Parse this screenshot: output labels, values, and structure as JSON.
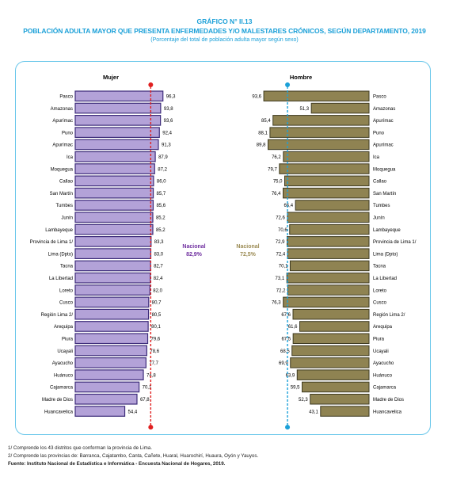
{
  "header": {
    "title": "GRÁFICO N° II.13",
    "subtitle": "POBLACIÓN ADULTA MAYOR QUE PRESENTA ENFERMEDADES Y/O MALESTARES CRÓNICOS, SEGÚN DEPARTAMENTO, 2019",
    "note": "(Porcentaje del total de población adulta mayor según sexo)"
  },
  "footnotes": {
    "n1": "1/ Comprende los 43 distritos que conforman la provincia de Lima.",
    "n2": "2/ Comprende las provincias de: Barranca, Cajatambo, Canta, Cañete, Huaral, Huarochirí, Huaura, Oyón y Yauyos.",
    "source": "Fuente: Instituto Nacional de Estadística e Informática - Encuesta Nacional de Hogares, 2019."
  },
  "colors": {
    "mujer_bar": "#b3a2d8",
    "mujer_border": "#3d2c7a",
    "hombre_bar": "#8f8352",
    "hombre_border": "#3e3a20",
    "mujer_line": "#e02020",
    "hombre_line": "#1ba0d8",
    "mujer_nacional": "#7030a0",
    "hombre_nacional": "#9c8c55",
    "title": "#1ba0d8"
  },
  "chart_data": [
    {
      "type": "bar",
      "orientation": "horizontal",
      "title": "Mujer",
      "categories": [
        "Pasco",
        "Amazonas",
        "Apurímac",
        "Puno",
        "Apurímac",
        "Ica",
        "Moquegua",
        "Callao",
        "San Martín",
        "Tumbes",
        "Junín",
        "Lambayeque",
        "Provincia de Lima 1/",
        "Lima (Dpto)",
        "Tacna",
        "La Libertad",
        "Loreto",
        "Cusco",
        "Región Lima 2/",
        "Arequipa",
        "Piura",
        "Ucayali",
        "Ayacucho",
        "Huánuco",
        "Cajamarca",
        "Madre de Dios",
        "Huancavelica"
      ],
      "values": [
        96.3,
        93.8,
        93.6,
        92.4,
        91.3,
        87.9,
        87.2,
        86.0,
        85.7,
        85.6,
        85.2,
        85.2,
        83.3,
        83.0,
        82.7,
        82.4,
        82.0,
        80.7,
        80.5,
        80.1,
        79.6,
        78.6,
        77.7,
        74.8,
        70.1,
        67.8,
        54.4
      ],
      "value_labels": [
        "96,3",
        "93,8",
        "93,6",
        "92,4",
        "91,3",
        "87,9",
        "87,2",
        "86,0",
        "85,7",
        "85,6",
        "85,2",
        "85,2",
        "83,3",
        "83,0",
        "82,7",
        "82,4",
        "82,0",
        "80,7",
        "80,5",
        "80,1",
        "79,6",
        "78,6",
        "77,7",
        "74,8",
        "70,1",
        "67,8",
        "54,4"
      ],
      "reference_line": {
        "label": "Nacional",
        "value": 82.9,
        "value_label": "82,9%"
      }
    },
    {
      "type": "bar",
      "orientation": "horizontal",
      "title": "Hombre",
      "categories": [
        "Pasco",
        "Amazonas",
        "Apurímac",
        "Puno",
        "Apurímac",
        "Ica",
        "Moquegua",
        "Callao",
        "San Martín",
        "Tumbes",
        "Junín",
        "Lambayeque",
        "Provincia de Lima 1/",
        "Lima (Dpto)",
        "Tacna",
        "La Libertad",
        "Loreto",
        "Cusco",
        "Región Lima 2/",
        "Arequipa",
        "Piura",
        "Ucayali",
        "Ayacucho",
        "Huánuco",
        "Cajamarca",
        "Madre de Dios",
        "Huancavelica"
      ],
      "values": [
        93.6,
        51.3,
        85.4,
        88.1,
        89.8,
        76.2,
        79.7,
        75.0,
        76.4,
        65.4,
        72.6,
        70.6,
        72.9,
        72.4,
        70.1,
        73.1,
        72.2,
        76.3,
        67.6,
        61.6,
        67.5,
        68.5,
        69.9,
        63.9,
        59.5,
        52.3,
        43.1
      ],
      "value_labels": [
        "93,6",
        "51,3",
        "85,4",
        "88,1",
        "89,8",
        "76,2",
        "79,7",
        "75,0",
        "76,4",
        "65,4",
        "72,6",
        "70,6",
        "72,9",
        "72,4",
        "70,1",
        "73,1",
        "72,2",
        "76,3",
        "67,6",
        "61,6",
        "67,5",
        "68,5",
        "69,9",
        "63,9",
        "59,5",
        "52,3",
        "43,1"
      ],
      "reference_line": {
        "label": "Nacional",
        "value": 72.5,
        "value_label": "72,5%"
      }
    }
  ]
}
